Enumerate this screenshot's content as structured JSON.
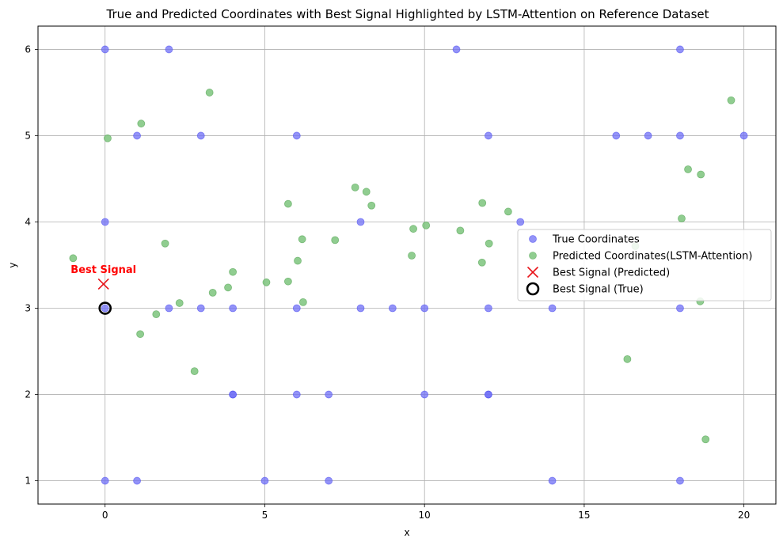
{
  "chart_data": {
    "type": "scatter",
    "title": "True and Predicted Coordinates with Best Signal Highlighted by LSTM-Attention on Reference Dataset",
    "xlabel": "x",
    "ylabel": "y",
    "xlim": [
      -2.1,
      21.0
    ],
    "ylim": [
      0.73,
      6.27
    ],
    "xticks": [
      0,
      5,
      10,
      15,
      20
    ],
    "yticks": [
      1,
      2,
      3,
      4,
      5,
      6
    ],
    "grid": true,
    "legend_position": "center-right",
    "colors": {
      "true": "#6f6ff5",
      "predicted": "#7cc47c",
      "best_pred": "#e8141a",
      "best_true": "#000000",
      "annotation": "#ff0000"
    },
    "series": [
      {
        "name": "True Coordinates",
        "marker": "circle",
        "points": [
          [
            0,
            6
          ],
          [
            2,
            6
          ],
          [
            11,
            6
          ],
          [
            18,
            6
          ],
          [
            1,
            5
          ],
          [
            3,
            5
          ],
          [
            6,
            5
          ],
          [
            12,
            5
          ],
          [
            16,
            5
          ],
          [
            17,
            5
          ],
          [
            18,
            5
          ],
          [
            20,
            5
          ],
          [
            0,
            4
          ],
          [
            8,
            4
          ],
          [
            13,
            4
          ],
          [
            0,
            3
          ],
          [
            2,
            3
          ],
          [
            3,
            3
          ],
          [
            4,
            3
          ],
          [
            6,
            3
          ],
          [
            8,
            3
          ],
          [
            9,
            3
          ],
          [
            10,
            3
          ],
          [
            12,
            3
          ],
          [
            14,
            3
          ],
          [
            18,
            3
          ],
          [
            4,
            2
          ],
          [
            4,
            2
          ],
          [
            6,
            2
          ],
          [
            7,
            2
          ],
          [
            10,
            2
          ],
          [
            12,
            2
          ],
          [
            12,
            2
          ],
          [
            0,
            1
          ],
          [
            1,
            1
          ],
          [
            5,
            1
          ],
          [
            7,
            1
          ],
          [
            14,
            1
          ],
          [
            18,
            1
          ]
        ]
      },
      {
        "name": "Predicted Coordinates(LSTM-Attention)",
        "marker": "circle",
        "points": [
          [
            3.27,
            5.5
          ],
          [
            19.6,
            5.41
          ],
          [
            1.13,
            5.14
          ],
          [
            0.08,
            4.97
          ],
          [
            18.25,
            4.61
          ],
          [
            18.65,
            4.55
          ],
          [
            7.83,
            4.4
          ],
          [
            8.18,
            4.35
          ],
          [
            5.73,
            4.21
          ],
          [
            8.34,
            4.19
          ],
          [
            11.81,
            4.22
          ],
          [
            12.62,
            4.12
          ],
          [
            18.05,
            4.04
          ],
          [
            10.05,
            3.96
          ],
          [
            9.65,
            3.92
          ],
          [
            11.12,
            3.9
          ],
          [
            6.17,
            3.8
          ],
          [
            7.2,
            3.79
          ],
          [
            1.88,
            3.75
          ],
          [
            12.02,
            3.75
          ],
          [
            9.6,
            3.61
          ],
          [
            -1.0,
            3.58
          ],
          [
            6.03,
            3.55
          ],
          [
            11.8,
            3.53
          ],
          [
            4.0,
            3.42
          ],
          [
            5.05,
            3.3
          ],
          [
            5.73,
            3.31
          ],
          [
            3.85,
            3.24
          ],
          [
            3.37,
            3.18
          ],
          [
            6.2,
            3.07
          ],
          [
            2.33,
            3.06
          ],
          [
            18.63,
            3.08
          ],
          [
            1.6,
            2.93
          ],
          [
            1.1,
            2.7
          ],
          [
            16.35,
            2.41
          ],
          [
            2.8,
            2.27
          ],
          [
            18.8,
            1.48
          ],
          [
            16.6,
            3.72
          ]
        ]
      },
      {
        "name": "Best Signal (Predicted)",
        "marker": "x",
        "points": [
          [
            -0.05,
            3.28
          ]
        ]
      },
      {
        "name": "Best Signal (True)",
        "marker": "ring",
        "points": [
          [
            0,
            3
          ]
        ]
      }
    ],
    "annotation": {
      "text": "Best Signal",
      "x": -0.05,
      "y": 3.28
    }
  }
}
